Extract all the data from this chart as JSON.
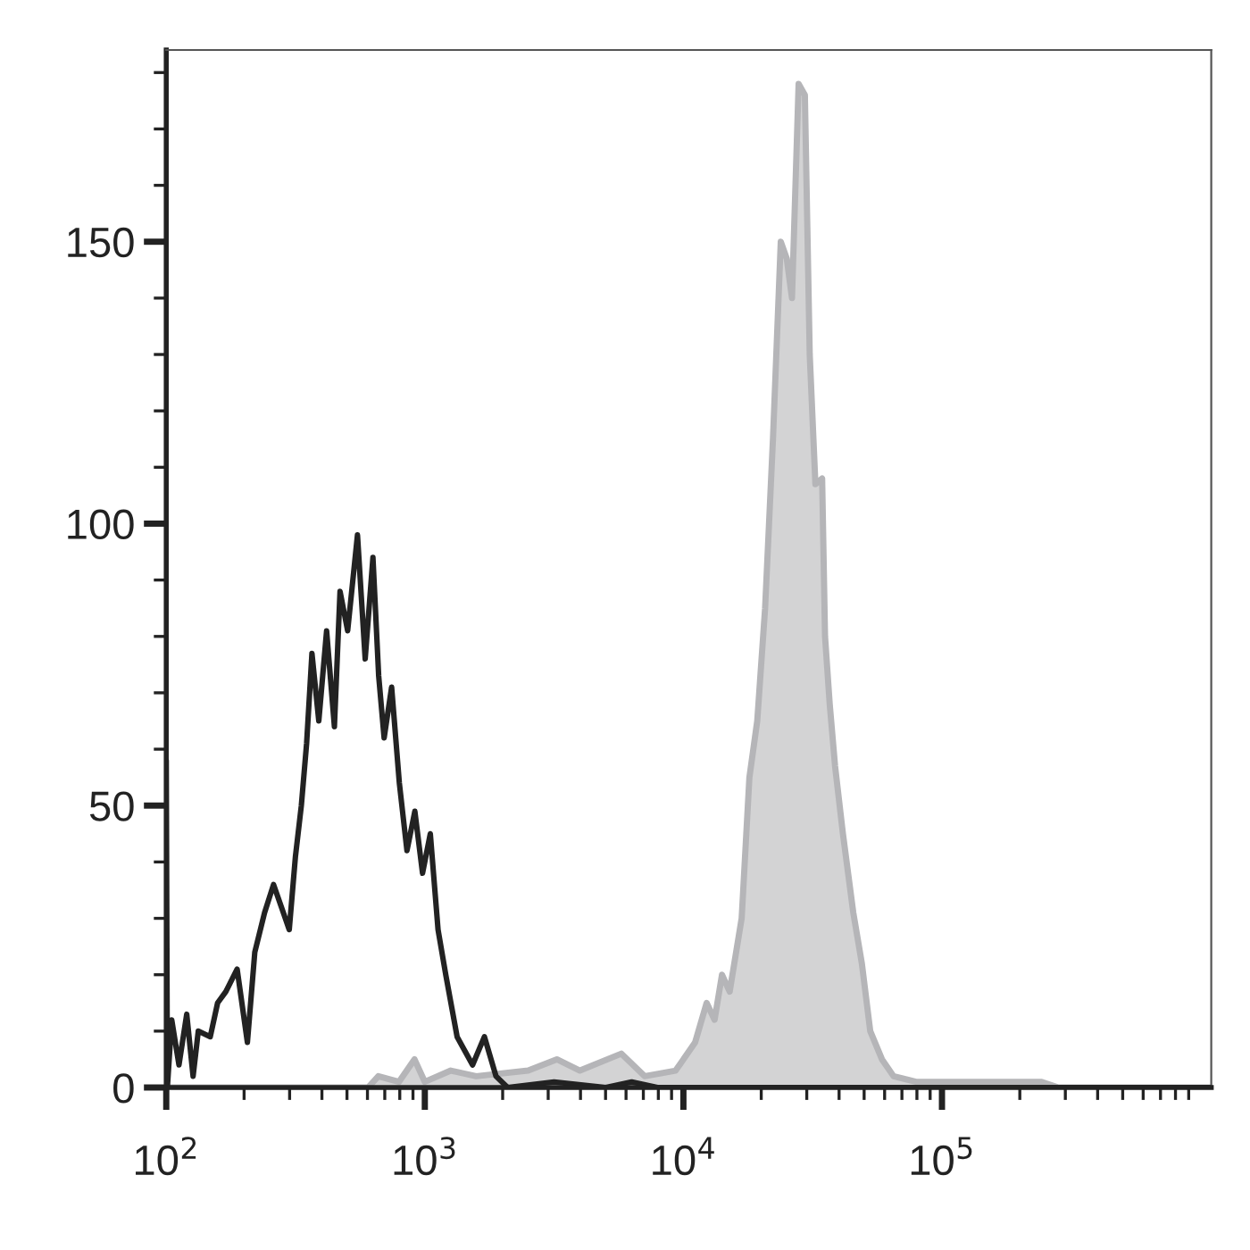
{
  "chart_data": {
    "type": "area",
    "log": "x",
    "grid": false,
    "xlim": [
      100,
      1100000
    ],
    "xticks": [
      {
        "value": 100,
        "label": "10$^{2}$"
      },
      {
        "value": 1000,
        "label": "10$^{3}$"
      },
      {
        "value": 10000,
        "label": "10$^{4}$"
      },
      {
        "value": 100000,
        "label": "10$^{5}$"
      }
    ],
    "ylim": [
      0,
      184
    ],
    "yticks": [
      0,
      {
        "value": 10,
        "label": null
      },
      {
        "value": 20,
        "label": null
      },
      {
        "value": 30,
        "label": null
      },
      {
        "value": 40,
        "label": null
      },
      50,
      {
        "value": 60,
        "label": null
      },
      {
        "value": 70,
        "label": null
      },
      {
        "value": 80,
        "label": null
      },
      {
        "value": 90,
        "label": null
      },
      100,
      {
        "value": 110,
        "label": null
      },
      {
        "value": 120,
        "label": null
      },
      {
        "value": 130,
        "label": null
      },
      {
        "value": 140,
        "label": null
      },
      150,
      {
        "value": 160,
        "label": null
      },
      {
        "value": 170,
        "label": null
      },
      {
        "value": 180,
        "label": null
      }
    ],
    "series": [
      {
        "color": "#b5b5b8",
        "x": [
          100,
          603,
          661,
          794,
          912,
          1000,
          1260,
          1580,
          2510,
          3240,
          3980,
          5750,
          7080,
          9330,
          11100,
          12300,
          13200,
          14100,
          15100,
          16800,
          18000,
          19300,
          20700,
          22200,
          23800,
          25100,
          26300,
          27900,
          29500,
          30800,
          32400,
          34400,
          35300,
          36800,
          38600,
          41400,
          45400,
          49000,
          52800,
          58600,
          65000,
          79400,
          105000,
          158000,
          243000,
          282000,
          1100000
        ],
        "values": [
          0,
          0,
          2,
          1,
          5,
          1,
          3,
          2,
          3,
          5,
          3,
          6,
          2,
          3,
          8,
          15,
          12,
          20,
          17,
          30,
          55,
          65,
          85,
          115,
          150,
          147,
          140,
          178,
          176,
          130,
          107,
          108,
          80,
          68,
          57,
          45,
          31,
          22,
          10,
          5,
          2,
          1,
          1,
          1,
          1,
          0,
          0
        ]
      },
      {
        "type": "line",
        "color": "#222222",
        "x": [
          100,
          101,
          105,
          112,
          120,
          127,
          133,
          148,
          158,
          170,
          188,
          206,
          220,
          240,
          260,
          299,
          316,
          333,
          349,
          366,
          389,
          417,
          447,
          470,
          503,
          549,
          588,
          630,
          663,
          696,
          744,
          797,
          853,
          915,
          980,
          1050,
          1125,
          1205,
          1333,
          1530,
          1700,
          1885,
          2090,
          3160,
          5010,
          6310,
          7940,
          10000,
          1100000
        ],
        "values": [
          58,
          0,
          12,
          4,
          13,
          2,
          10,
          9,
          15,
          17,
          21,
          8,
          24,
          31,
          36,
          28,
          41,
          50,
          61,
          77,
          65,
          81,
          64,
          88,
          81,
          98,
          76,
          94,
          73,
          62,
          71,
          54,
          42,
          49,
          38,
          45,
          28,
          20,
          9,
          4,
          9,
          2,
          0,
          1,
          0,
          1,
          0,
          0,
          0
        ]
      }
    ]
  }
}
